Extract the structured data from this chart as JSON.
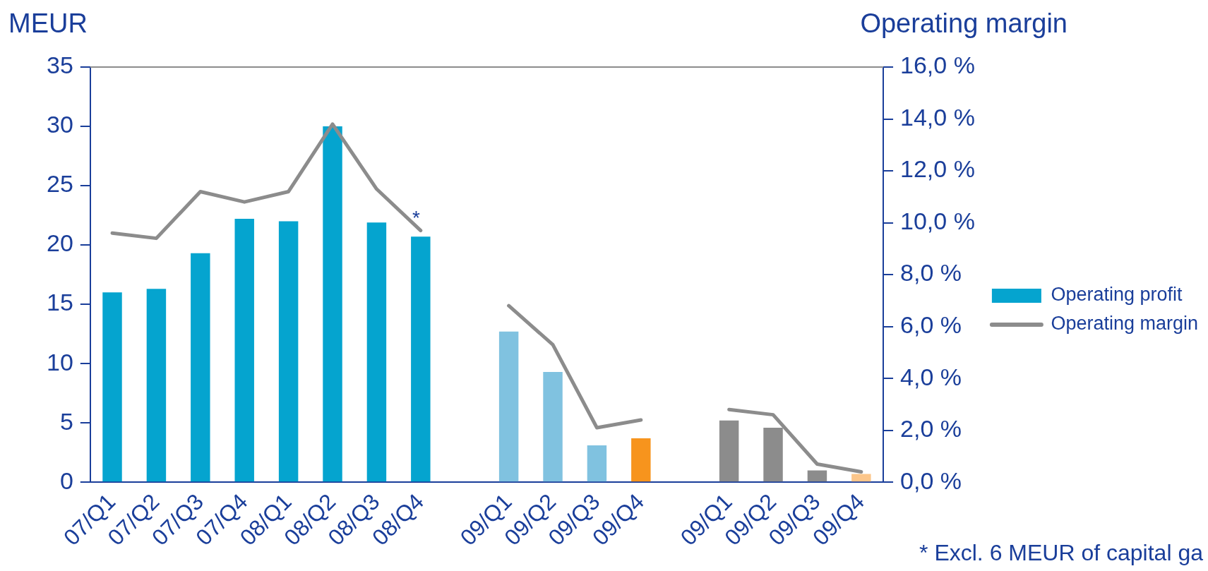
{
  "chart_data": {
    "type": "bar",
    "ylabel": "MEUR",
    "y2label": "Operating margin",
    "categories": [
      "07/Q1",
      "07/Q2",
      "07/Q3",
      "07/Q4",
      "08/Q1",
      "08/Q2",
      "08/Q3",
      "08/Q4",
      null,
      "09/Q1",
      "09/Q2",
      "09/Q3",
      "09/Q4",
      null,
      "09/Q1",
      "09/Q2",
      "09/Q3",
      "09/Q4"
    ],
    "series": [
      {
        "name": "Operating profit",
        "color": "#05a4cf",
        "colors": [
          "#05a4cf",
          "#05a4cf",
          "#05a4cf",
          "#05a4cf",
          "#05a4cf",
          "#05a4cf",
          "#05a4cf",
          "#05a4cf",
          "#05a4cf",
          "#80c2e0",
          "#80c2e0",
          "#80c2e0",
          "#f7941d",
          "#8c8c8c",
          "#8c8c8c",
          "#8c8c8c",
          "#8c8c8c",
          "#fcc68a"
        ],
        "values": [
          16.0,
          16.3,
          19.3,
          22.2,
          22.0,
          30.0,
          21.9,
          20.7,
          null,
          12.7,
          9.3,
          3.1,
          3.7,
          null,
          5.2,
          4.6,
          1.0,
          0.7
        ]
      },
      {
        "name": "Operating margin",
        "type": "line",
        "axis": "y2",
        "color": "#8c8c8c",
        "values": [
          9.6,
          9.4,
          11.2,
          10.8,
          11.2,
          13.8,
          11.3,
          9.7,
          null,
          6.8,
          5.3,
          2.1,
          2.4,
          null,
          2.8,
          2.6,
          0.7,
          0.4
        ]
      }
    ],
    "ylim": [
      0,
      35
    ],
    "yticks": [
      0,
      5,
      10,
      15,
      20,
      25,
      30,
      35
    ],
    "y2lim": [
      0,
      16
    ],
    "y2ticks": [
      {
        "value": 0,
        "label": "0,0 %"
      },
      {
        "value": 2,
        "label": "2,0 %"
      },
      {
        "value": 4,
        "label": "4,0 %"
      },
      {
        "value": 6,
        "label": "6,0 %"
      },
      {
        "value": 8,
        "label": "8,0 %"
      },
      {
        "value": 10,
        "label": "10,0 %"
      },
      {
        "value": 12,
        "label": "12,0 %"
      },
      {
        "value": 14,
        "label": "14,0 %"
      },
      {
        "value": 16,
        "label": "16,0 %"
      }
    ],
    "legend": "right",
    "annotations": [
      "*",
      "* Excl. 6 MEUR of capital ga"
    ]
  }
}
